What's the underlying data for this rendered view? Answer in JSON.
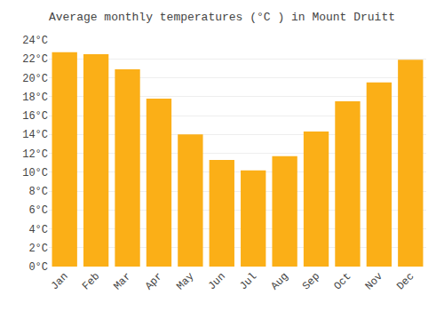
{
  "chart_data": {
    "type": "bar",
    "title": "Average monthly temperatures (°C ) in Mount Druitt",
    "categories": [
      "Jan",
      "Feb",
      "Mar",
      "Apr",
      "May",
      "Jun",
      "Jul",
      "Aug",
      "Sep",
      "Oct",
      "Nov",
      "Dec"
    ],
    "values": [
      22.7,
      22.5,
      20.9,
      17.8,
      14.0,
      11.3,
      10.2,
      11.7,
      14.3,
      17.5,
      19.5,
      21.9
    ],
    "color": "#FBAF17",
    "ylim": [
      0,
      24
    ],
    "yticks": [
      {
        "value": 0,
        "label": "0°C"
      },
      {
        "value": 2,
        "label": "2°C"
      },
      {
        "value": 4,
        "label": "4°C"
      },
      {
        "value": 6,
        "label": "6°C"
      },
      {
        "value": 8,
        "label": "8°C"
      },
      {
        "value": 10,
        "label": "10°C"
      },
      {
        "value": 12,
        "label": "12°C"
      },
      {
        "value": 14,
        "label": "14°C"
      },
      {
        "value": 16,
        "label": "16°C"
      },
      {
        "value": 18,
        "label": "18°C"
      },
      {
        "value": 20,
        "label": "20°C"
      },
      {
        "value": 22,
        "label": "22°C"
      },
      {
        "value": 24,
        "label": "24°C"
      }
    ],
    "grid": true
  }
}
